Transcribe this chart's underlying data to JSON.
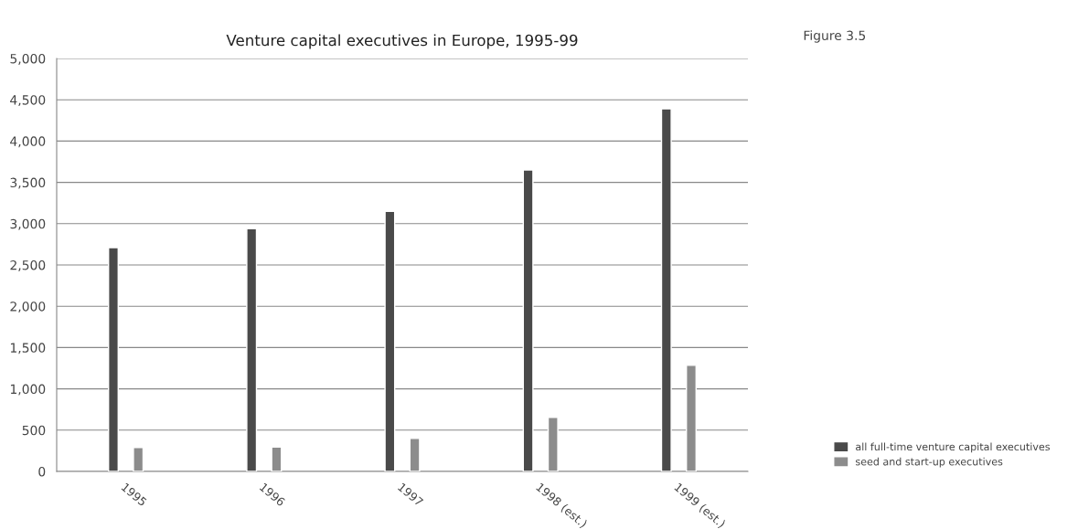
{
  "chart_data": {
    "type": "bar",
    "title": "Venture capital executives in Europe, 1995-99",
    "categories": [
      "1995",
      "1996",
      "1997",
      "1998 (est.)",
      "1999 (est.)"
    ],
    "series": [
      {
        "name": "all full-time venture capital executives",
        "color": "#4a4a4a",
        "values": [
          2710,
          2940,
          3150,
          3650,
          4390
        ]
      },
      {
        "name": "seed and start-up executives",
        "color": "#8c8c8c",
        "values": [
          290,
          295,
          400,
          655,
          1285
        ]
      }
    ],
    "ylim": [
      0,
      5000
    ],
    "yticks": [
      0,
      500,
      {
        "value": 1000,
        "label": "1,000"
      },
      {
        "value": 1500,
        "label": "1,500"
      },
      {
        "value": 2000,
        "label": "2,000"
      },
      {
        "value": 2500,
        "label": "2,500"
      },
      {
        "value": 3000,
        "label": "3,000"
      },
      {
        "value": 3500,
        "label": "3,500"
      },
      {
        "value": 4000,
        "label": "4,000"
      },
      {
        "value": 4500,
        "label": "4,500"
      },
      {
        "value": 5000,
        "label": "5,000"
      }
    ],
    "grid": "y",
    "legend": "bottom right",
    "annotations": [
      "Figure 3.5"
    ]
  }
}
